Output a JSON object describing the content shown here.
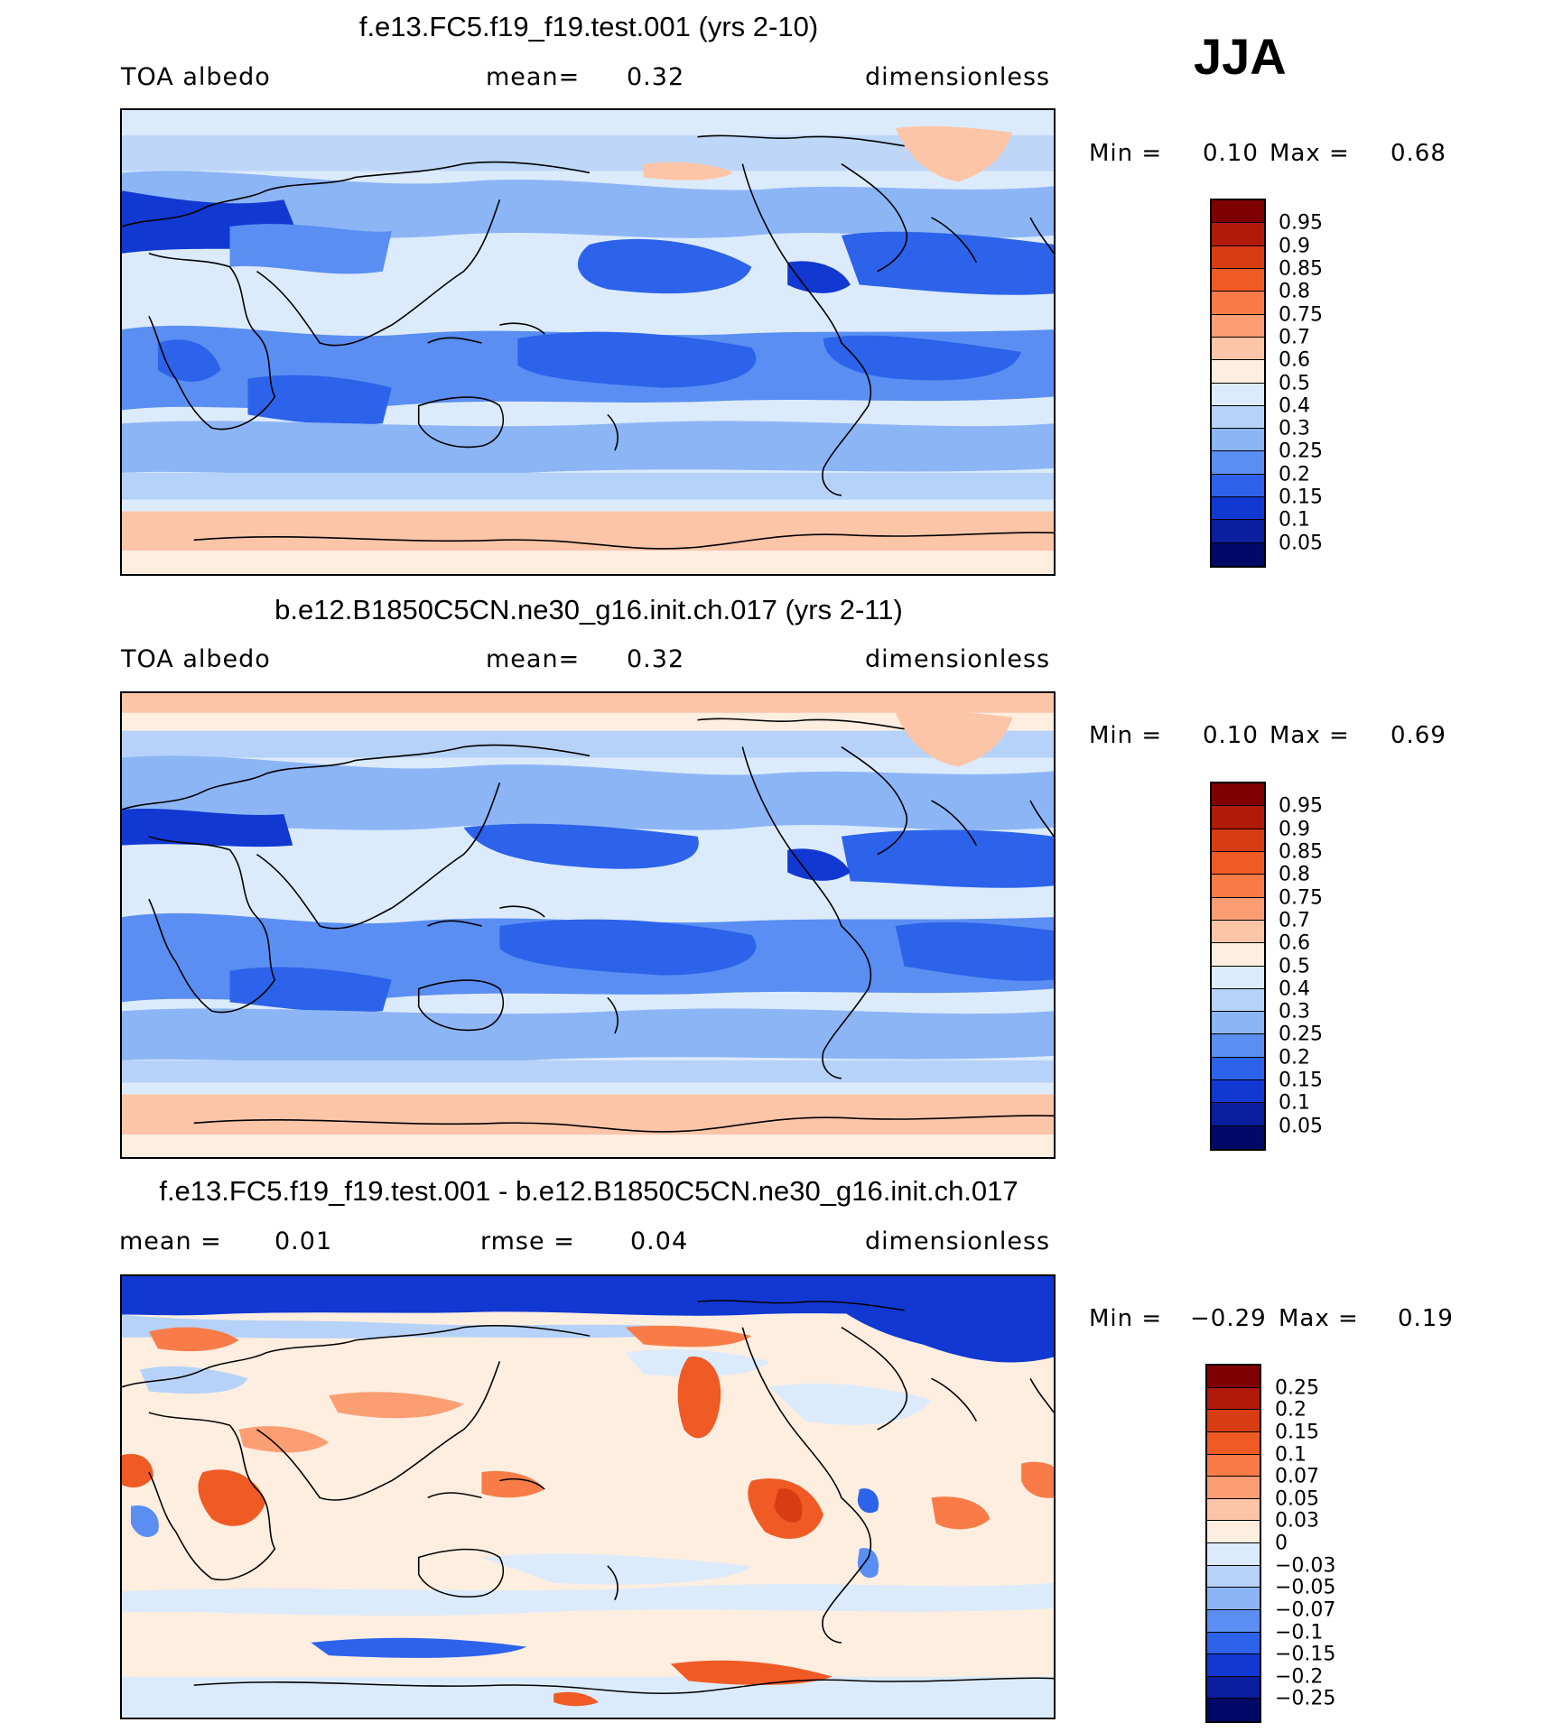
{
  "season": "JJA",
  "panels": [
    {
      "title": "f.e13.FC5.f19_f19.test.001 (yrs 2-10)",
      "left_label": "TOA albedo",
      "mid_label": "mean=",
      "mid_value": "0.32",
      "right_label": "dimensionless",
      "min_label": "Min =",
      "min_value": "0.10",
      "max_label": "Max =",
      "max_value": "0.68",
      "colorbar": {
        "labels": [
          "0.95",
          "0.9",
          "0.85",
          "0.8",
          "0.75",
          "0.7",
          "0.6",
          "0.5",
          "0.4",
          "0.3",
          "0.25",
          "0.2",
          "0.15",
          "0.1",
          "0.05"
        ],
        "colors": [
          "#7f0000",
          "#b01a0a",
          "#d83c12",
          "#f05a24",
          "#f97c48",
          "#fc9e74",
          "#fdc5a8",
          "#fdeee0",
          "#dcebfb",
          "#b6d2f8",
          "#8cb5f6",
          "#5a8ef2",
          "#2d63ea",
          "#1238d2",
          "#0a1e9e",
          "#000a66"
        ]
      },
      "field": "model"
    },
    {
      "title": "b.e12.B1850C5CN.ne30_g16.init.ch.017 (yrs 2-11)",
      "left_label": "TOA albedo",
      "mid_label": "mean=",
      "mid_value": "0.32",
      "right_label": "dimensionless",
      "min_label": "Min =",
      "min_value": "0.10",
      "max_label": "Max =",
      "max_value": "0.69",
      "colorbar": {
        "labels": [
          "0.95",
          "0.9",
          "0.85",
          "0.8",
          "0.75",
          "0.7",
          "0.6",
          "0.5",
          "0.4",
          "0.3",
          "0.25",
          "0.2",
          "0.15",
          "0.1",
          "0.05"
        ],
        "colors": [
          "#7f0000",
          "#b01a0a",
          "#d83c12",
          "#f05a24",
          "#f97c48",
          "#fc9e74",
          "#fdc5a8",
          "#fdeee0",
          "#dcebfb",
          "#b6d2f8",
          "#8cb5f6",
          "#5a8ef2",
          "#2d63ea",
          "#1238d2",
          "#0a1e9e",
          "#000a66"
        ]
      },
      "field": "control"
    },
    {
      "title": "f.e13.FC5.f19_f19.test.001 - b.e12.B1850C5CN.ne30_g16.init.ch.017",
      "left_label": "mean =",
      "left_value": "0.01",
      "mid_label": "rmse =",
      "mid_value": "0.04",
      "right_label": "dimensionless",
      "min_label": "Min =",
      "min_value": "−0.29",
      "max_label": "Max =",
      "max_value": "0.19",
      "colorbar": {
        "labels": [
          "0.25",
          "0.2",
          "0.15",
          "0.1",
          "0.07",
          "0.05",
          "0.03",
          "0",
          "−0.03",
          "−0.05",
          "−0.07",
          "−0.1",
          "−0.15",
          "−0.2",
          "−0.25"
        ],
        "colors": [
          "#7f0000",
          "#b01a0a",
          "#d83c12",
          "#f05a24",
          "#f97c48",
          "#fc9e74",
          "#fdc5a8",
          "#fdeee0",
          "#dcebfb",
          "#b6d2f8",
          "#8cb5f6",
          "#5a8ef2",
          "#2d63ea",
          "#1238d2",
          "#0a1e9e",
          "#000a66"
        ]
      },
      "field": "difference"
    }
  ]
}
